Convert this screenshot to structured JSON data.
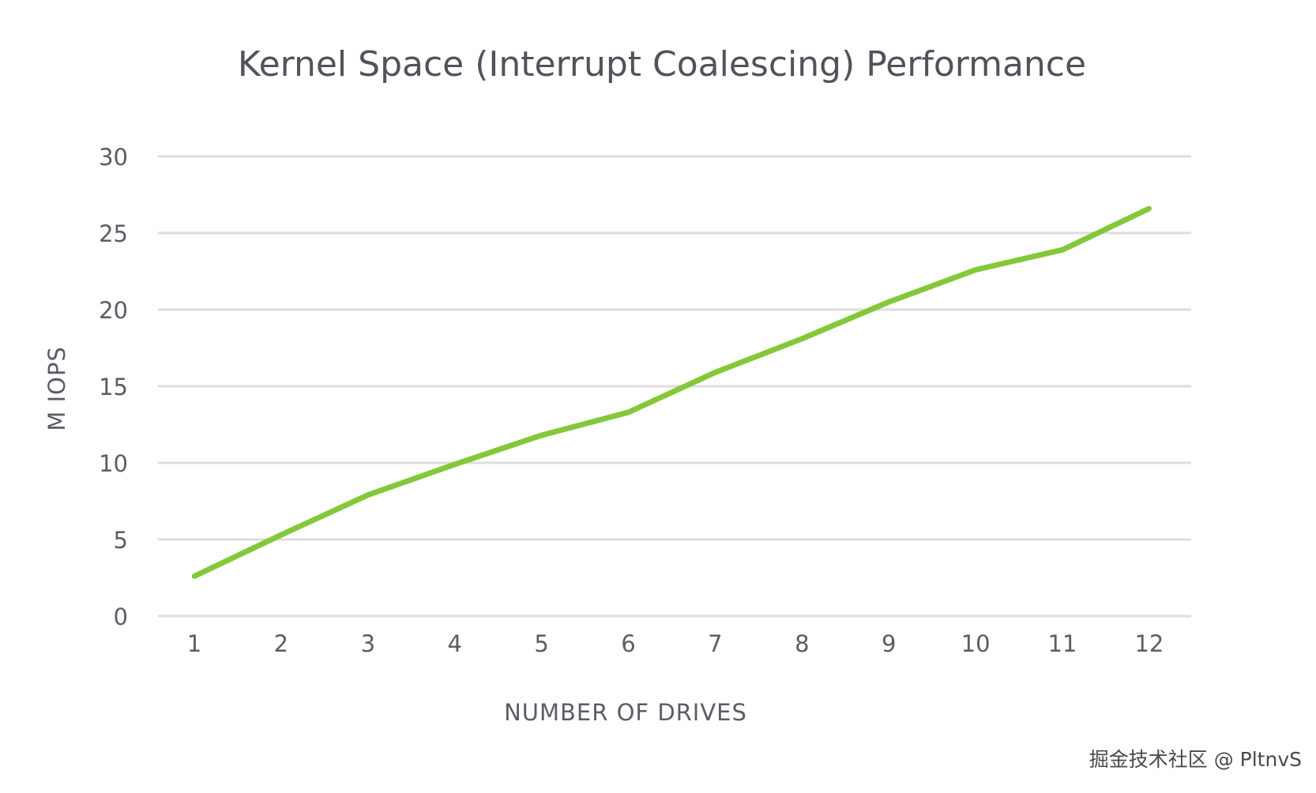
{
  "chart_data": {
    "type": "line",
    "title": "Kernel Space (Interrupt Coalescing) Performance",
    "xlabel": "NUMBER OF DRIVES",
    "ylabel": "M IOPS",
    "categories": [
      "1",
      "2",
      "3",
      "4",
      "5",
      "6",
      "7",
      "8",
      "9",
      "10",
      "11",
      "12"
    ],
    "series": [
      {
        "name": "Kernel Space (Interrupt Coalescing)",
        "color": "#84c83a",
        "values": [
          2.6,
          5.3,
          7.9,
          9.9,
          11.8,
          13.3,
          15.9,
          18.1,
          20.5,
          22.6,
          23.9,
          26.6
        ]
      }
    ],
    "y_ticks": [
      "0",
      "5",
      "10",
      "15",
      "20",
      "25",
      "30"
    ],
    "ylim": [
      0,
      30
    ],
    "grid": true,
    "legend": "none"
  },
  "watermark": "掘金技术社区 @ PltnvS"
}
